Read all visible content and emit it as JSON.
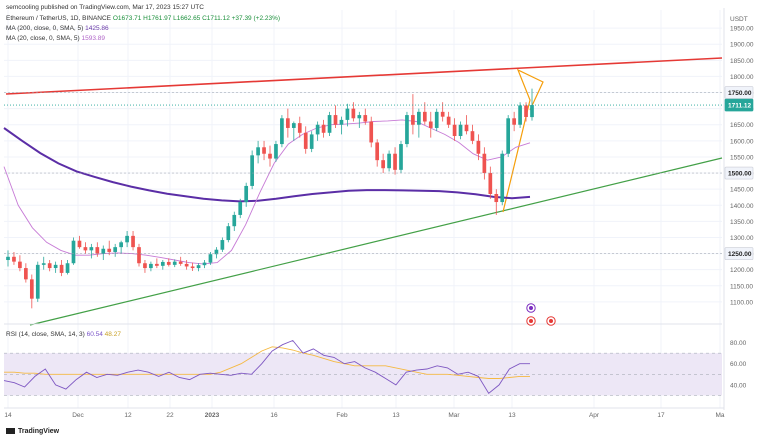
{
  "header": {
    "publisher": "semcooling published on TradingView.com, Mar 17, 2023 15:27 UTC",
    "symbol": "Ethereum / TetherUS, 1D, BINANCE",
    "ohlc": "O1673.71 H1761.97 L1662.65 C1711.12 +37.39 (+2.23%)",
    "ma1": "MA (200, close, 0, SMA, 5)",
    "ma1_value": "1425.86",
    "ma2": "MA (20, close, 0, SMA, 5)",
    "ma2_value": "1593.89",
    "currency": "USDT"
  },
  "rsi_label": {
    "text": "RSI (14, close, SMA, 14, 3)",
    "rsi_value": "60.54",
    "ma_value": "48.27"
  },
  "footer": {
    "brand": "TradingView"
  },
  "colors": {
    "up": "#26a69a",
    "down": "#ef5350",
    "ma200": "#5b2ea6",
    "ma20": "#c77bd6",
    "resistance": "#e53935",
    "support": "#43a047",
    "wedge": "#f59e0b",
    "rsi": "#7e57c2",
    "rsi_ma": "#f5b942",
    "rsi_band": "#ede7f6"
  },
  "chart_data": {
    "type": "candlestick",
    "x_tick_labels": [
      "14",
      "Dec",
      "12",
      "22",
      "2023",
      "16",
      "Feb",
      "13",
      "Mar",
      "13",
      "Apr",
      "17",
      "Ma"
    ],
    "price_axis": {
      "ticks": [
        1100,
        1150,
        1200,
        1250,
        1300,
        1350,
        1400,
        1450,
        1500,
        1550,
        1600,
        1650,
        1700,
        1750,
        1800,
        1850,
        1900,
        1950
      ],
      "range": [
        1050,
        2000
      ],
      "tagged_levels": [
        1750,
        1711.12,
        1500,
        1250
      ],
      "last_price": 1711.12
    },
    "rsi_axis": {
      "ticks": [
        40,
        60,
        80
      ],
      "band": [
        30,
        70
      ]
    },
    "candles": [
      {
        "o": 1230,
        "h": 1260,
        "l": 1210,
        "c": 1240
      },
      {
        "o": 1240,
        "h": 1255,
        "l": 1215,
        "c": 1225
      },
      {
        "o": 1225,
        "h": 1245,
        "l": 1195,
        "c": 1205
      },
      {
        "o": 1205,
        "h": 1220,
        "l": 1160,
        "c": 1170
      },
      {
        "o": 1170,
        "h": 1185,
        "l": 1080,
        "c": 1110
      },
      {
        "o": 1110,
        "h": 1225,
        "l": 1100,
        "c": 1215
      },
      {
        "o": 1215,
        "h": 1240,
        "l": 1200,
        "c": 1220
      },
      {
        "o": 1220,
        "h": 1230,
        "l": 1195,
        "c": 1205
      },
      {
        "o": 1205,
        "h": 1225,
        "l": 1190,
        "c": 1215
      },
      {
        "o": 1215,
        "h": 1230,
        "l": 1180,
        "c": 1190
      },
      {
        "o": 1190,
        "h": 1230,
        "l": 1185,
        "c": 1220
      },
      {
        "o": 1220,
        "h": 1300,
        "l": 1215,
        "c": 1290
      },
      {
        "o": 1290,
        "h": 1305,
        "l": 1265,
        "c": 1270
      },
      {
        "o": 1270,
        "h": 1285,
        "l": 1250,
        "c": 1260
      },
      {
        "o": 1260,
        "h": 1280,
        "l": 1235,
        "c": 1270
      },
      {
        "o": 1270,
        "h": 1285,
        "l": 1240,
        "c": 1250
      },
      {
        "o": 1250,
        "h": 1275,
        "l": 1230,
        "c": 1265
      },
      {
        "o": 1265,
        "h": 1290,
        "l": 1245,
        "c": 1255
      },
      {
        "o": 1255,
        "h": 1280,
        "l": 1240,
        "c": 1270
      },
      {
        "o": 1270,
        "h": 1290,
        "l": 1250,
        "c": 1285
      },
      {
        "o": 1285,
        "h": 1320,
        "l": 1270,
        "c": 1305
      },
      {
        "o": 1305,
        "h": 1320,
        "l": 1260,
        "c": 1270
      },
      {
        "o": 1270,
        "h": 1280,
        "l": 1210,
        "c": 1220
      },
      {
        "o": 1220,
        "h": 1230,
        "l": 1190,
        "c": 1205
      },
      {
        "o": 1205,
        "h": 1225,
        "l": 1195,
        "c": 1218
      },
      {
        "o": 1218,
        "h": 1235,
        "l": 1205,
        "c": 1212
      },
      {
        "o": 1212,
        "h": 1230,
        "l": 1200,
        "c": 1224
      },
      {
        "o": 1224,
        "h": 1235,
        "l": 1210,
        "c": 1215
      },
      {
        "o": 1215,
        "h": 1232,
        "l": 1208,
        "c": 1225
      },
      {
        "o": 1225,
        "h": 1240,
        "l": 1212,
        "c": 1218
      },
      {
        "o": 1218,
        "h": 1230,
        "l": 1200,
        "c": 1210
      },
      {
        "o": 1210,
        "h": 1222,
        "l": 1196,
        "c": 1205
      },
      {
        "o": 1205,
        "h": 1220,
        "l": 1195,
        "c": 1214
      },
      {
        "o": 1214,
        "h": 1230,
        "l": 1205,
        "c": 1222
      },
      {
        "o": 1222,
        "h": 1255,
        "l": 1215,
        "c": 1248
      },
      {
        "o": 1248,
        "h": 1270,
        "l": 1235,
        "c": 1262
      },
      {
        "o": 1262,
        "h": 1300,
        "l": 1255,
        "c": 1292
      },
      {
        "o": 1292,
        "h": 1345,
        "l": 1285,
        "c": 1335
      },
      {
        "o": 1335,
        "h": 1380,
        "l": 1320,
        "c": 1370
      },
      {
        "o": 1370,
        "h": 1420,
        "l": 1360,
        "c": 1410
      },
      {
        "o": 1410,
        "h": 1470,
        "l": 1395,
        "c": 1460
      },
      {
        "o": 1460,
        "h": 1570,
        "l": 1450,
        "c": 1555
      },
      {
        "o": 1555,
        "h": 1600,
        "l": 1530,
        "c": 1580
      },
      {
        "o": 1580,
        "h": 1600,
        "l": 1540,
        "c": 1560
      },
      {
        "o": 1560,
        "h": 1585,
        "l": 1520,
        "c": 1545
      },
      {
        "o": 1545,
        "h": 1600,
        "l": 1535,
        "c": 1590
      },
      {
        "o": 1590,
        "h": 1680,
        "l": 1580,
        "c": 1670
      },
      {
        "o": 1670,
        "h": 1700,
        "l": 1610,
        "c": 1640
      },
      {
        "o": 1640,
        "h": 1660,
        "l": 1600,
        "c": 1655
      },
      {
        "o": 1655,
        "h": 1675,
        "l": 1610,
        "c": 1625
      },
      {
        "o": 1625,
        "h": 1645,
        "l": 1560,
        "c": 1575
      },
      {
        "o": 1575,
        "h": 1630,
        "l": 1565,
        "c": 1620
      },
      {
        "o": 1620,
        "h": 1660,
        "l": 1600,
        "c": 1650
      },
      {
        "o": 1650,
        "h": 1665,
        "l": 1610,
        "c": 1625
      },
      {
        "o": 1625,
        "h": 1690,
        "l": 1615,
        "c": 1680
      },
      {
        "o": 1680,
        "h": 1710,
        "l": 1640,
        "c": 1650
      },
      {
        "o": 1650,
        "h": 1675,
        "l": 1620,
        "c": 1665
      },
      {
        "o": 1665,
        "h": 1715,
        "l": 1645,
        "c": 1700
      },
      {
        "o": 1700,
        "h": 1720,
        "l": 1660,
        "c": 1670
      },
      {
        "o": 1670,
        "h": 1690,
        "l": 1640,
        "c": 1680
      },
      {
        "o": 1680,
        "h": 1700,
        "l": 1650,
        "c": 1660
      },
      {
        "o": 1660,
        "h": 1675,
        "l": 1580,
        "c": 1595
      },
      {
        "o": 1595,
        "h": 1605,
        "l": 1520,
        "c": 1540
      },
      {
        "o": 1540,
        "h": 1560,
        "l": 1500,
        "c": 1515
      },
      {
        "o": 1515,
        "h": 1570,
        "l": 1505,
        "c": 1560
      },
      {
        "o": 1560,
        "h": 1580,
        "l": 1495,
        "c": 1510
      },
      {
        "o": 1510,
        "h": 1600,
        "l": 1500,
        "c": 1590
      },
      {
        "o": 1590,
        "h": 1690,
        "l": 1580,
        "c": 1680
      },
      {
        "o": 1680,
        "h": 1745,
        "l": 1620,
        "c": 1650
      },
      {
        "o": 1650,
        "h": 1700,
        "l": 1610,
        "c": 1690
      },
      {
        "o": 1690,
        "h": 1720,
        "l": 1650,
        "c": 1660
      },
      {
        "o": 1660,
        "h": 1690,
        "l": 1610,
        "c": 1640
      },
      {
        "o": 1640,
        "h": 1700,
        "l": 1630,
        "c": 1690
      },
      {
        "o": 1690,
        "h": 1720,
        "l": 1660,
        "c": 1675
      },
      {
        "o": 1675,
        "h": 1690,
        "l": 1640,
        "c": 1650
      },
      {
        "o": 1650,
        "h": 1670,
        "l": 1600,
        "c": 1615
      },
      {
        "o": 1615,
        "h": 1660,
        "l": 1605,
        "c": 1650
      },
      {
        "o": 1650,
        "h": 1680,
        "l": 1620,
        "c": 1630
      },
      {
        "o": 1630,
        "h": 1650,
        "l": 1590,
        "c": 1600
      },
      {
        "o": 1600,
        "h": 1620,
        "l": 1540,
        "c": 1560
      },
      {
        "o": 1560,
        "h": 1580,
        "l": 1480,
        "c": 1500
      },
      {
        "o": 1500,
        "h": 1520,
        "l": 1420,
        "c": 1435
      },
      {
        "o": 1435,
        "h": 1450,
        "l": 1370,
        "c": 1410
      },
      {
        "o": 1410,
        "h": 1570,
        "l": 1400,
        "c": 1560
      },
      {
        "o": 1560,
        "h": 1680,
        "l": 1550,
        "c": 1670
      },
      {
        "o": 1670,
        "h": 1690,
        "l": 1630,
        "c": 1650
      },
      {
        "o": 1650,
        "h": 1720,
        "l": 1640,
        "c": 1710
      },
      {
        "o": 1710,
        "h": 1720,
        "l": 1660,
        "c": 1674
      },
      {
        "o": 1673.71,
        "h": 1761.97,
        "l": 1662.65,
        "c": 1711.12
      }
    ],
    "ma200": [
      1640,
      1600,
      1562,
      1530,
      1505,
      1488,
      1472,
      1458,
      1446,
      1436,
      1428,
      1420,
      1415,
      1412,
      1414,
      1420,
      1428,
      1435,
      1440,
      1445,
      1447,
      1447,
      1446,
      1445,
      1444,
      1440,
      1434,
      1426,
      1422,
      1426
    ],
    "ma20": [
      1520,
      1400,
      1330,
      1285,
      1260,
      1245,
      1245,
      1250,
      1252,
      1250,
      1245,
      1238,
      1230,
      1222,
      1218,
      1222,
      1260,
      1340,
      1440,
      1530,
      1590,
      1620,
      1640,
      1650,
      1652,
      1655,
      1660,
      1662,
      1665,
      1660,
      1640,
      1620,
      1595,
      1560,
      1540,
      1550,
      1580,
      1594
    ],
    "rsi": [
      44,
      42,
      38,
      48,
      55,
      40,
      36,
      45,
      52,
      47,
      50,
      49,
      52,
      54,
      52,
      48,
      52,
      47,
      45,
      50,
      51,
      50,
      49,
      51,
      50,
      60,
      72,
      78,
      82,
      70,
      74,
      68,
      66,
      60,
      62,
      56,
      52,
      46,
      40,
      52,
      54,
      55,
      58,
      56,
      50,
      52,
      48,
      32,
      40,
      55,
      60,
      60
    ],
    "rsi_ma": [
      52,
      52,
      51,
      51,
      50,
      50,
      50,
      50,
      50,
      50,
      50,
      50,
      50,
      50,
      50,
      50,
      50,
      50,
      50,
      50,
      50,
      52,
      56,
      60,
      66,
      72,
      76,
      75,
      73,
      70,
      68,
      65,
      62,
      60,
      58,
      58,
      58,
      58,
      56,
      54,
      52,
      50,
      50,
      50,
      49,
      48,
      47,
      46,
      46,
      47,
      48,
      48
    ]
  }
}
